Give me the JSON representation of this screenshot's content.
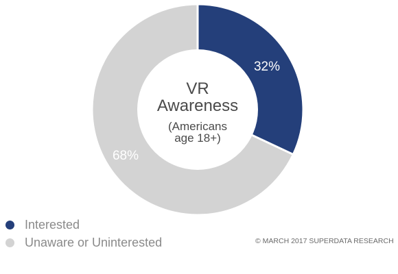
{
  "chart_data": {
    "type": "pie",
    "style": "donut",
    "center_text": {
      "title_lines": [
        "VR",
        "Awareness"
      ],
      "subtitle_lines": [
        "(Americans",
        "age 18+)"
      ]
    },
    "slices": [
      {
        "label": "Interested",
        "value": 32,
        "display": "32%",
        "color": "#243f7a"
      },
      {
        "label": "Unaware or Uninterested",
        "value": 68,
        "display": "68%",
        "color": "#d3d3d3"
      }
    ],
    "legend_position": "bottom-left",
    "colors": {
      "separator": "#ffffff",
      "center": "#ffffff",
      "text_dark": "#4a4a4a",
      "legend_text": "#8a8a8a"
    }
  },
  "footer": {
    "copyright": "© MARCH 2017 SUPERDATA RESEARCH"
  }
}
